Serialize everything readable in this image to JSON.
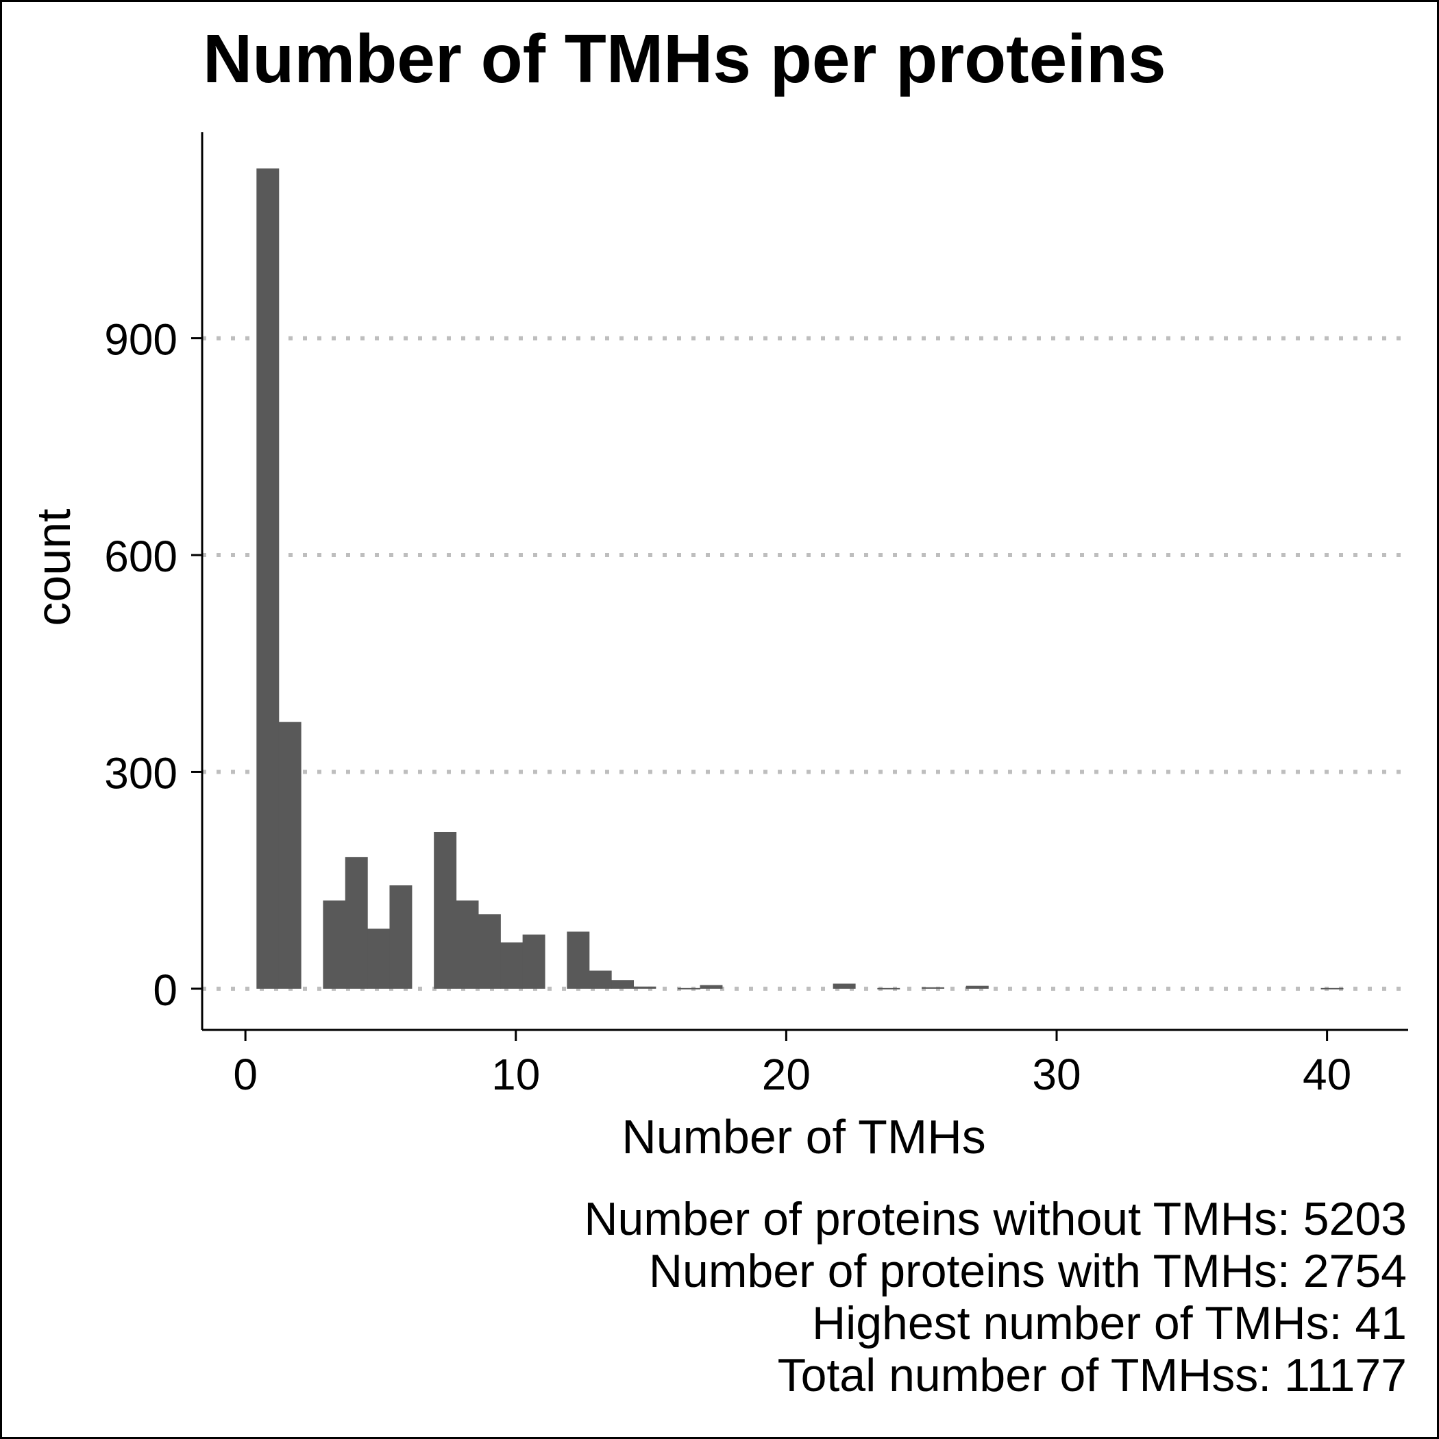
{
  "chart_data": {
    "type": "bar",
    "title": "Number of TMHs per proteins",
    "xlabel": "Number of TMHs",
    "ylabel": "count",
    "bin_width": 0.82,
    "xlim": [
      -1.6,
      43
    ],
    "ylim": [
      -57,
      1185
    ],
    "x_ticks": [
      0,
      10,
      20,
      30,
      40
    ],
    "y_ticks": [
      0,
      300,
      600,
      900
    ],
    "grid": "horizontal dotted",
    "bar_color": "#595959",
    "bins": [
      {
        "x": 0.82,
        "count": 1135
      },
      {
        "x": 1.64,
        "count": 369
      },
      {
        "x": 2.46,
        "count": 0
      },
      {
        "x": 3.28,
        "count": 122
      },
      {
        "x": 4.1,
        "count": 182
      },
      {
        "x": 4.92,
        "count": 83
      },
      {
        "x": 5.74,
        "count": 143
      },
      {
        "x": 6.56,
        "count": 0
      },
      {
        "x": 7.38,
        "count": 217
      },
      {
        "x": 8.2,
        "count": 122
      },
      {
        "x": 9.02,
        "count": 103
      },
      {
        "x": 9.84,
        "count": 64
      },
      {
        "x": 10.66,
        "count": 75
      },
      {
        "x": 11.48,
        "count": 0
      },
      {
        "x": 12.3,
        "count": 79
      },
      {
        "x": 13.12,
        "count": 25
      },
      {
        "x": 13.94,
        "count": 12
      },
      {
        "x": 14.76,
        "count": 3
      },
      {
        "x": 15.58,
        "count": 0
      },
      {
        "x": 16.4,
        "count": 1
      },
      {
        "x": 17.22,
        "count": 5
      },
      {
        "x": 22.14,
        "count": 7
      },
      {
        "x": 23.78,
        "count": 1
      },
      {
        "x": 25.42,
        "count": 2
      },
      {
        "x": 27.06,
        "count": 4
      },
      {
        "x": 40.18,
        "count": 1
      }
    ]
  },
  "caption": [
    "Number of proteins without TMHs: 5203",
    "Number of proteins with TMHs: 2754",
    "Highest number of TMHs: 41",
    "Total number of TMHss: 11177"
  ],
  "colors": {
    "bar": "#595959",
    "grid": "#bebebe",
    "axis": "#000000",
    "background": "#ffffff"
  }
}
